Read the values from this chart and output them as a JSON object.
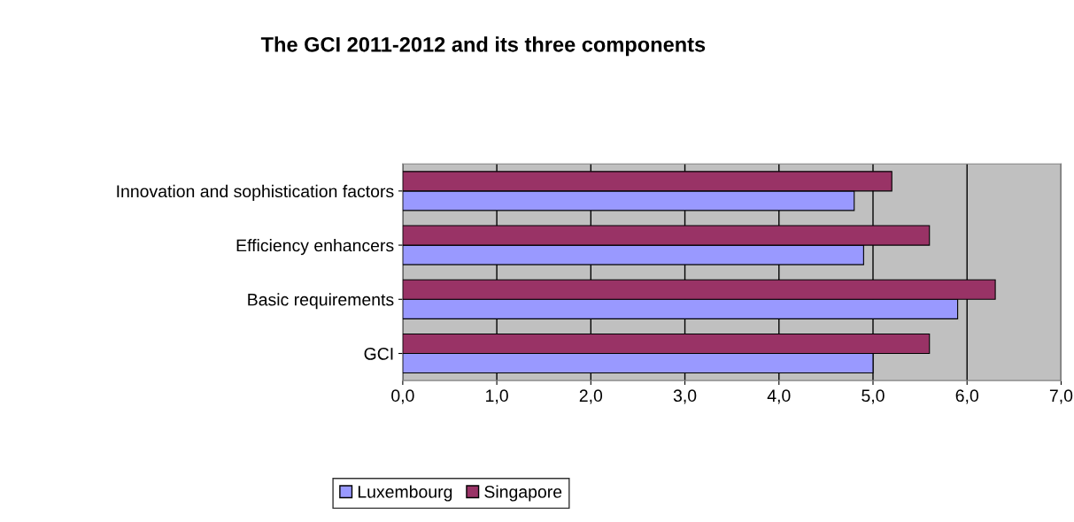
{
  "chart_data": {
    "type": "bar",
    "orientation": "horizontal",
    "title": "The GCI 2011-2012 and its three components",
    "categories": [
      "Innovation and sophistication factors",
      "Efficiency enhancers",
      "Basic requirements",
      "GCI"
    ],
    "series": [
      {
        "name": "Luxembourg",
        "color": "#9999ff",
        "values": [
          4.8,
          4.9,
          5.9,
          5.0
        ]
      },
      {
        "name": "Singapore",
        "color": "#993366",
        "values": [
          5.2,
          5.6,
          6.3,
          5.6
        ]
      }
    ],
    "xlim": [
      0,
      7
    ],
    "xticks": [
      {
        "value": 0,
        "label": "0,0"
      },
      {
        "value": 1,
        "label": "1,0"
      },
      {
        "value": 2,
        "label": "2,0"
      },
      {
        "value": 3,
        "label": "3,0"
      },
      {
        "value": 4,
        "label": "4,0"
      },
      {
        "value": 5,
        "label": "5,0"
      },
      {
        "value": 6,
        "label": "6,0"
      },
      {
        "value": 7,
        "label": "7,0"
      }
    ],
    "grid": "x",
    "legend": "bottom"
  }
}
